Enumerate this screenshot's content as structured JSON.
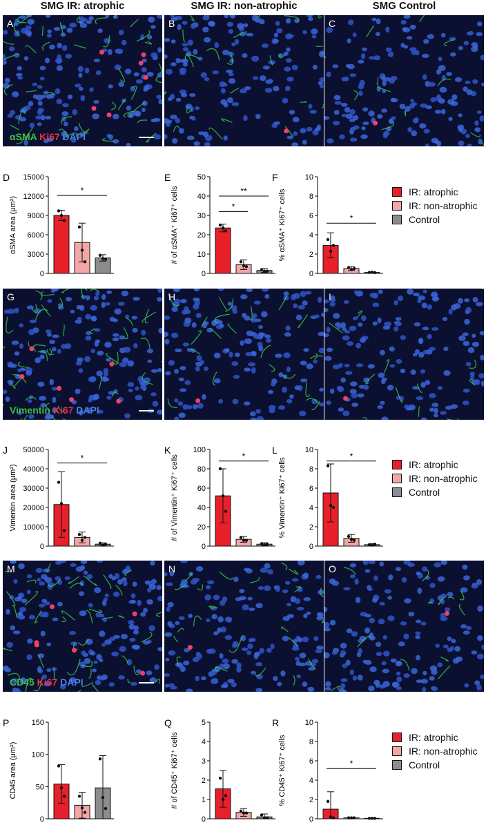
{
  "column_titles": [
    "SMG IR: atrophic",
    "SMG IR: non-atrophic",
    "SMG Control"
  ],
  "image_rows": [
    {
      "letters": [
        "A",
        "B",
        "C"
      ],
      "stain": [
        {
          "t": "αSMA",
          "c": "#3fbf3f"
        },
        {
          "t": " Ki67",
          "c": "#e8334a"
        },
        {
          "t": " DAPI",
          "c": "#4a7fe0"
        }
      ]
    },
    {
      "letters": [
        "G",
        "H",
        "I"
      ],
      "stain": [
        {
          "t": "Vimentin",
          "c": "#3fbf3f"
        },
        {
          "t": " Ki67",
          "c": "#e8334a"
        },
        {
          "t": " DAPI",
          "c": "#4a7fe0"
        }
      ]
    },
    {
      "letters": [
        "M",
        "N",
        "O"
      ],
      "stain": [
        {
          "t": "CD45",
          "c": "#3fbf3f"
        },
        {
          "t": " Ki67",
          "c": "#e8334a"
        },
        {
          "t": " DAPI",
          "c": "#4a7fe0"
        }
      ]
    }
  ],
  "legend": {
    "items": [
      "IR: atrophic",
      "IR: non-atrophic",
      "Control"
    ],
    "colors": [
      "#e8202a",
      "#f4a6a6",
      "#8c8c8c"
    ]
  },
  "chart_data": [
    {
      "panel": "D",
      "type": "bar",
      "ylabel": "αSMA area (μm²)",
      "ylim": [
        0,
        15000
      ],
      "yticks": [
        0,
        3000,
        6000,
        9000,
        12000,
        15000
      ],
      "values": [
        9000,
        4800,
        2400
      ],
      "errors": [
        800,
        3000,
        500
      ],
      "points": [
        [
          9700,
          9000,
          8200
        ],
        [
          7200,
          3600,
          1800
        ],
        [
          2800,
          2300,
          2200
        ]
      ],
      "sig": [
        {
          "from": 0,
          "to": 2,
          "label": "*",
          "y": 12100
        }
      ]
    },
    {
      "panel": "E",
      "type": "bar",
      "ylabel": "# of αSMA⁺ Ki67⁺ cells",
      "ylim": [
        0,
        50
      ],
      "yticks": [
        0,
        10,
        20,
        30,
        40,
        50
      ],
      "values": [
        23.5,
        4.5,
        1.5
      ],
      "errors": [
        2,
        2.5,
        1
      ],
      "points": [
        [
          25,
          23.5,
          22
        ],
        [
          6,
          4,
          3.5
        ],
        [
          2,
          1,
          1.2
        ]
      ],
      "sig": [
        {
          "from": 0,
          "to": 1,
          "label": "*",
          "y": 32
        },
        {
          "from": 0,
          "to": 2,
          "label": "**",
          "y": 40
        }
      ]
    },
    {
      "panel": "F",
      "type": "bar",
      "ylabel": "% αSMA⁺ Ki67⁺ cells",
      "ylim": [
        0,
        10
      ],
      "yticks": [
        0,
        2,
        4,
        6,
        8,
        10
      ],
      "values": [
        2.9,
        0.5,
        0.1
      ],
      "errors": [
        1.3,
        0.2,
        0.05
      ],
      "points": [
        [
          3.5,
          2.3,
          2.9
        ],
        [
          0.6,
          0.4,
          0.5
        ],
        [
          0.1,
          0.12,
          0.08
        ]
      ],
      "sig": [
        {
          "from": 0,
          "to": 2,
          "label": "*",
          "y": 5.2
        }
      ]
    },
    {
      "panel": "J",
      "type": "bar",
      "ylabel": "Vimentin area (μm²)",
      "ylim": [
        0,
        50000
      ],
      "yticks": [
        0,
        10000,
        20000,
        30000,
        40000,
        50000
      ],
      "values": [
        21500,
        4500,
        1000
      ],
      "errors": [
        17000,
        2800,
        700
      ],
      "points": [
        [
          33000,
          22000,
          8000
        ],
        [
          6000,
          3000,
          4500
        ],
        [
          1500,
          500,
          1000
        ]
      ],
      "sig": [
        {
          "from": 0,
          "to": 2,
          "label": "*",
          "y": 43000
        }
      ]
    },
    {
      "panel": "K",
      "type": "bar",
      "ylabel": "# of Vimentin⁺ Ki67⁺ cells",
      "ylim": [
        0,
        100
      ],
      "yticks": [
        0,
        20,
        40,
        60,
        80,
        100
      ],
      "values": [
        52,
        7,
        2
      ],
      "errors": [
        28,
        3,
        1.5
      ],
      "points": [
        [
          80,
          52,
          36
        ],
        [
          9,
          6,
          6
        ],
        [
          2.5,
          1.5,
          2
        ]
      ],
      "sig": [
        {
          "from": 0,
          "to": 2,
          "label": "*",
          "y": 88
        }
      ]
    },
    {
      "panel": "L",
      "type": "bar",
      "ylabel": "% Vimentin⁺ Ki67⁺ cells",
      "ylim": [
        0,
        10
      ],
      "yticks": [
        0,
        2,
        4,
        6,
        8,
        10
      ],
      "values": [
        5.5,
        0.8,
        0.15
      ],
      "errors": [
        3,
        0.4,
        0.1
      ],
      "points": [
        [
          8.3,
          4.2,
          4.0
        ],
        [
          1.0,
          0.7,
          0.6
        ],
        [
          0.15,
          0.1,
          0.2
        ]
      ],
      "sig": [
        {
          "from": 0,
          "to": 2,
          "label": "*",
          "y": 8.8
        }
      ]
    },
    {
      "panel": "P",
      "type": "bar",
      "ylabel": "CD45 area (μm²)",
      "ylim": [
        0,
        150
      ],
      "yticks": [
        0,
        50,
        100,
        150
      ],
      "values": [
        54,
        21,
        48
      ],
      "errors": [
        30,
        20,
        50
      ],
      "points": [
        [
          82,
          48,
          35
        ],
        [
          35,
          17,
          10
        ],
        [
          93,
          33,
          16
        ]
      ],
      "sig": []
    },
    {
      "panel": "Q",
      "type": "bar",
      "ylabel": "# of CD45⁺ Ki67⁺ cells",
      "ylim": [
        0,
        5
      ],
      "yticks": [
        0,
        1,
        2,
        3,
        4,
        5
      ],
      "values": [
        1.55,
        0.33,
        0.1
      ],
      "errors": [
        0.95,
        0.2,
        0.15
      ],
      "points": [
        [
          2.1,
          1.0,
          1.2
        ],
        [
          0.4,
          0.3,
          0.3
        ],
        [
          0.2,
          0.05,
          0.05
        ]
      ],
      "sig": []
    },
    {
      "panel": "R",
      "type": "bar",
      "ylabel": "% CD45⁺ Ki67⁺ cells",
      "ylim": [
        0,
        10
      ],
      "yticks": [
        0,
        2,
        4,
        6,
        8,
        10
      ],
      "values": [
        1.0,
        0.1,
        0.05
      ],
      "errors": [
        1.8,
        0.05,
        0.03
      ],
      "points": [
        [
          1.8,
          0.2,
          0.1
        ],
        [
          0.1,
          0.1,
          0.1
        ],
        [
          0.05,
          0.05,
          0.05
        ]
      ],
      "sig": [
        {
          "from": 0,
          "to": 2,
          "label": "*",
          "y": 5.2
        }
      ]
    }
  ]
}
